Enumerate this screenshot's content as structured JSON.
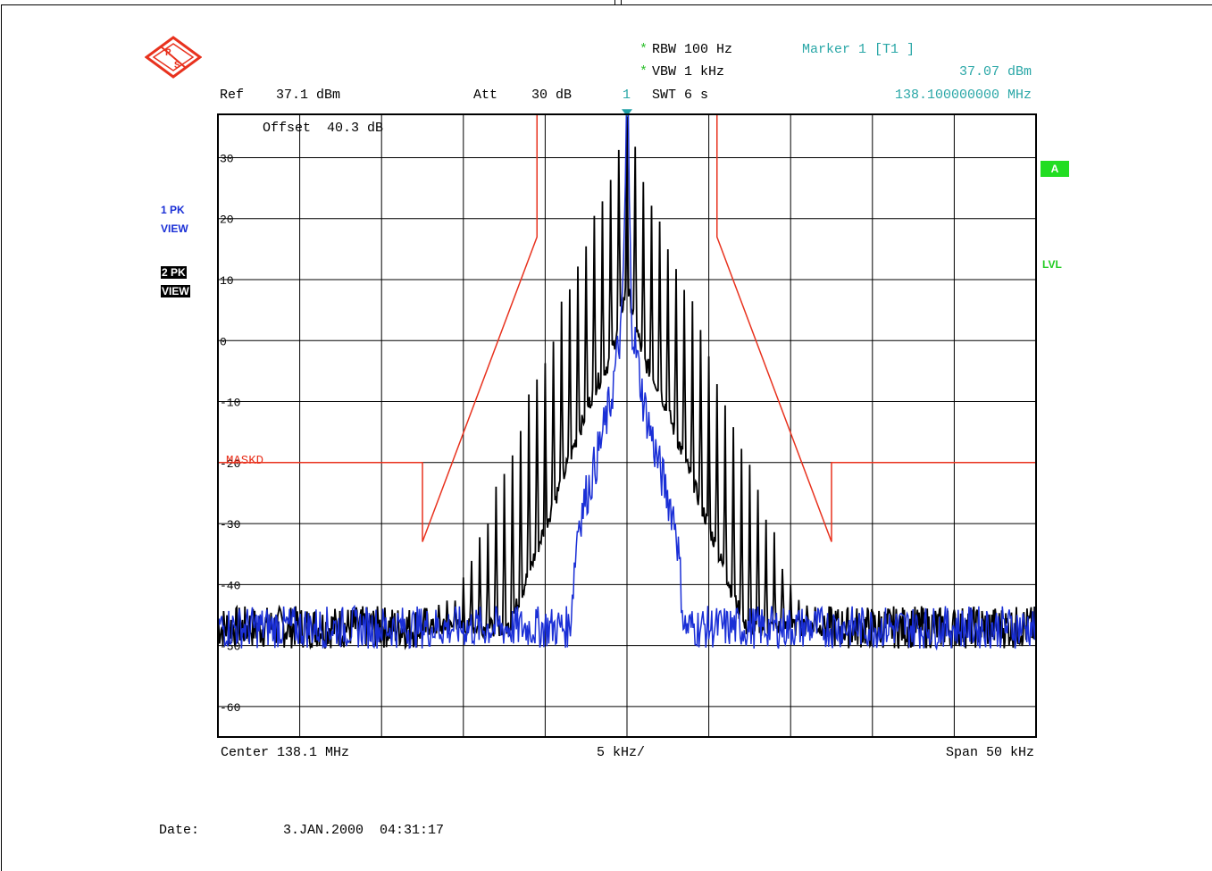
{
  "header": {
    "ref_label": "Ref",
    "ref_value": "37.1 dBm",
    "att_label": "Att",
    "att_value": "30 dB",
    "marker_num": "1",
    "rbw_star": "*",
    "rbw": "RBW 100 Hz",
    "vbw_star": "*",
    "vbw": "VBW 1 kHz",
    "swt": "SWT 6 s",
    "marker_title": "Marker 1 [T1 ]",
    "marker_level": "37.07 dBm",
    "marker_freq": "138.100000000 MHz",
    "offset": "Offset  40.3 dB"
  },
  "side": {
    "trace1_line1": "1 PK",
    "trace1_line2": "VIEW",
    "trace2_line1": "2 PK",
    "trace2_line2": "VIEW",
    "badge_a": "A",
    "lvl": "LVL"
  },
  "axis": {
    "center": "Center 138.1 MHz",
    "div": "5 kHz/",
    "span": "Span 50 kHz"
  },
  "footer": {
    "date_label": "Date:",
    "date_value": "3.JAN.2000  04:31:17"
  },
  "colors": {
    "trace1": "#1a2fd6",
    "trace2": "#000000",
    "mask": "#e8321e",
    "marker": "#1f9fa6",
    "grid": "#000000"
  },
  "chart_data": {
    "type": "line",
    "x_unit": "kHz offset from 138.1 MHz",
    "xlim": [
      -25,
      25
    ],
    "ylim": [
      -65,
      37.1
    ],
    "y_ticks": [
      30,
      20,
      10,
      0,
      -10,
      -20,
      -30,
      -40,
      -50,
      -60
    ],
    "y_tick_labels": [
      "30",
      "20",
      "10",
      "0",
      "-10",
      "-20",
      "-30",
      "-40",
      "-50",
      "-60"
    ],
    "grid": true,
    "mask_label": "MASKD",
    "mask": {
      "x": [
        -25,
        -12.5,
        -12.5,
        -5.5,
        -5.5,
        5.5,
        5.5,
        12.5,
        12.5,
        25
      ],
      "y": [
        -20,
        -20,
        -33,
        17,
        37.1,
        37.1,
        17,
        -33,
        -20,
        -20
      ]
    },
    "marker": {
      "x": 0,
      "y": 37.07
    },
    "series": [
      {
        "trace": "1 PK",
        "noise_floor": -47,
        "envelope": {
          "x": [
            -25,
            -3.5,
            -3,
            -2,
            -1,
            -0.3,
            0,
            0.3,
            1,
            2,
            3,
            3.5,
            25
          ],
          "y": [
            -47,
            -47,
            -30,
            -21,
            -10,
            3,
            37,
            3,
            -10,
            -21,
            -30,
            -47,
            -47
          ]
        }
      },
      {
        "trace": "2 PK",
        "noise_floor": -47,
        "comb_spacing": 0.5,
        "envelope": {
          "x": [
            -25,
            -12.5,
            -10,
            -8,
            -6,
            -4,
            -2,
            -1,
            0,
            1,
            2,
            4,
            6,
            8,
            10,
            12.5,
            25
          ],
          "y": [
            -47,
            -47,
            -40,
            -25,
            -10,
            5,
            20,
            25,
            37,
            25,
            20,
            5,
            -10,
            -25,
            -40,
            -47,
            -47
          ]
        }
      }
    ]
  }
}
